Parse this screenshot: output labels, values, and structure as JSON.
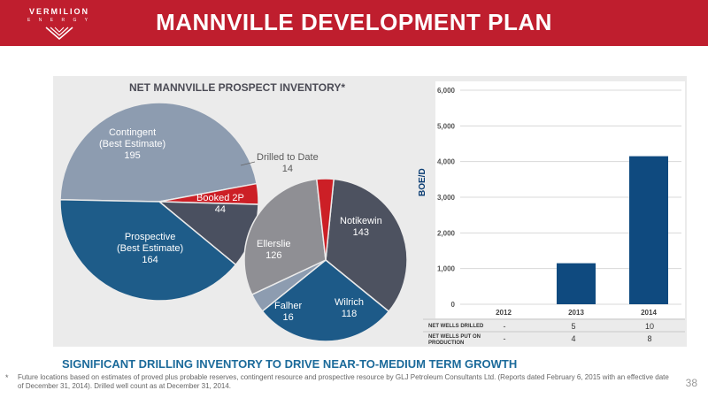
{
  "header": {
    "logo_text": "VERMILION",
    "logo_sub": "E N E R G Y",
    "title": "MANNVILLE DEVELOPMENT PLAN"
  },
  "colors": {
    "brand_red": "#bf1e2e",
    "pie_gray": "#8d9cb0",
    "pie_red": "#cc1f26",
    "pie_dark": "#4a5060",
    "pie_blue": "#1e5c89",
    "bar_blue": "#0f4a7f",
    "subtitle_blue": "#1b6a9a"
  },
  "chart_data": [
    {
      "type": "pie",
      "title": "NET MANNVILLE PROSPECT INVENTORY*",
      "slices": [
        {
          "label": "Contingent (Best Estimate)",
          "line1": "Contingent",
          "line2": "(Best Estimate)",
          "value": 195
        },
        {
          "label": "Drilled to Date",
          "line1": "Drilled to Date",
          "value": 14
        },
        {
          "label": "Booked 2P",
          "line1": "Booked 2P",
          "value": 44
        },
        {
          "label": "Prospective (Best Estimate)",
          "line1": "Prospective",
          "line2": "(Best Estimate)",
          "value": 164
        }
      ]
    },
    {
      "type": "pie",
      "title": "",
      "slices": [
        {
          "label": "Notikewin",
          "value": 143
        },
        {
          "label": "Wilrich",
          "value": 118
        },
        {
          "label": "Falher",
          "value": 16
        },
        {
          "label": "Ellerslie",
          "value": 126
        },
        {
          "label": "Drilled to Date",
          "value": 14
        }
      ]
    },
    {
      "type": "bar",
      "title": "",
      "categories": [
        "2012",
        "2013",
        "2014"
      ],
      "values": [
        0,
        1150,
        4150
      ],
      "ylabel": "BOE/D",
      "ylim": [
        0,
        6000
      ],
      "yticks": [
        "0",
        "1,000",
        "2,000",
        "3,000",
        "4,000",
        "5,000",
        "6,000"
      ],
      "grid": true
    }
  ],
  "table": {
    "rows": [
      {
        "label1": "NET WELLS DRILLED",
        "label2": "",
        "values": [
          "-",
          "5",
          "10"
        ]
      },
      {
        "label1": "NET WELLS PUT ON",
        "label2": "PRODUCTION",
        "values": [
          "-",
          "4",
          "8"
        ]
      }
    ]
  },
  "subtitle": "SIGNIFICANT DRILLING INVENTORY TO DRIVE NEAR-TO-MEDIUM TERM GROWTH",
  "footnote": {
    "star": "*",
    "text": "Future locations based on estimates of proved plus probable reserves, contingent resource and prospective resource by GLJ Petroleum Consultants Ltd. (Reports dated February 6, 2015 with an effective date of December 31, 2014).  Drilled well count as at December 31, 2014."
  },
  "page_number": "38"
}
